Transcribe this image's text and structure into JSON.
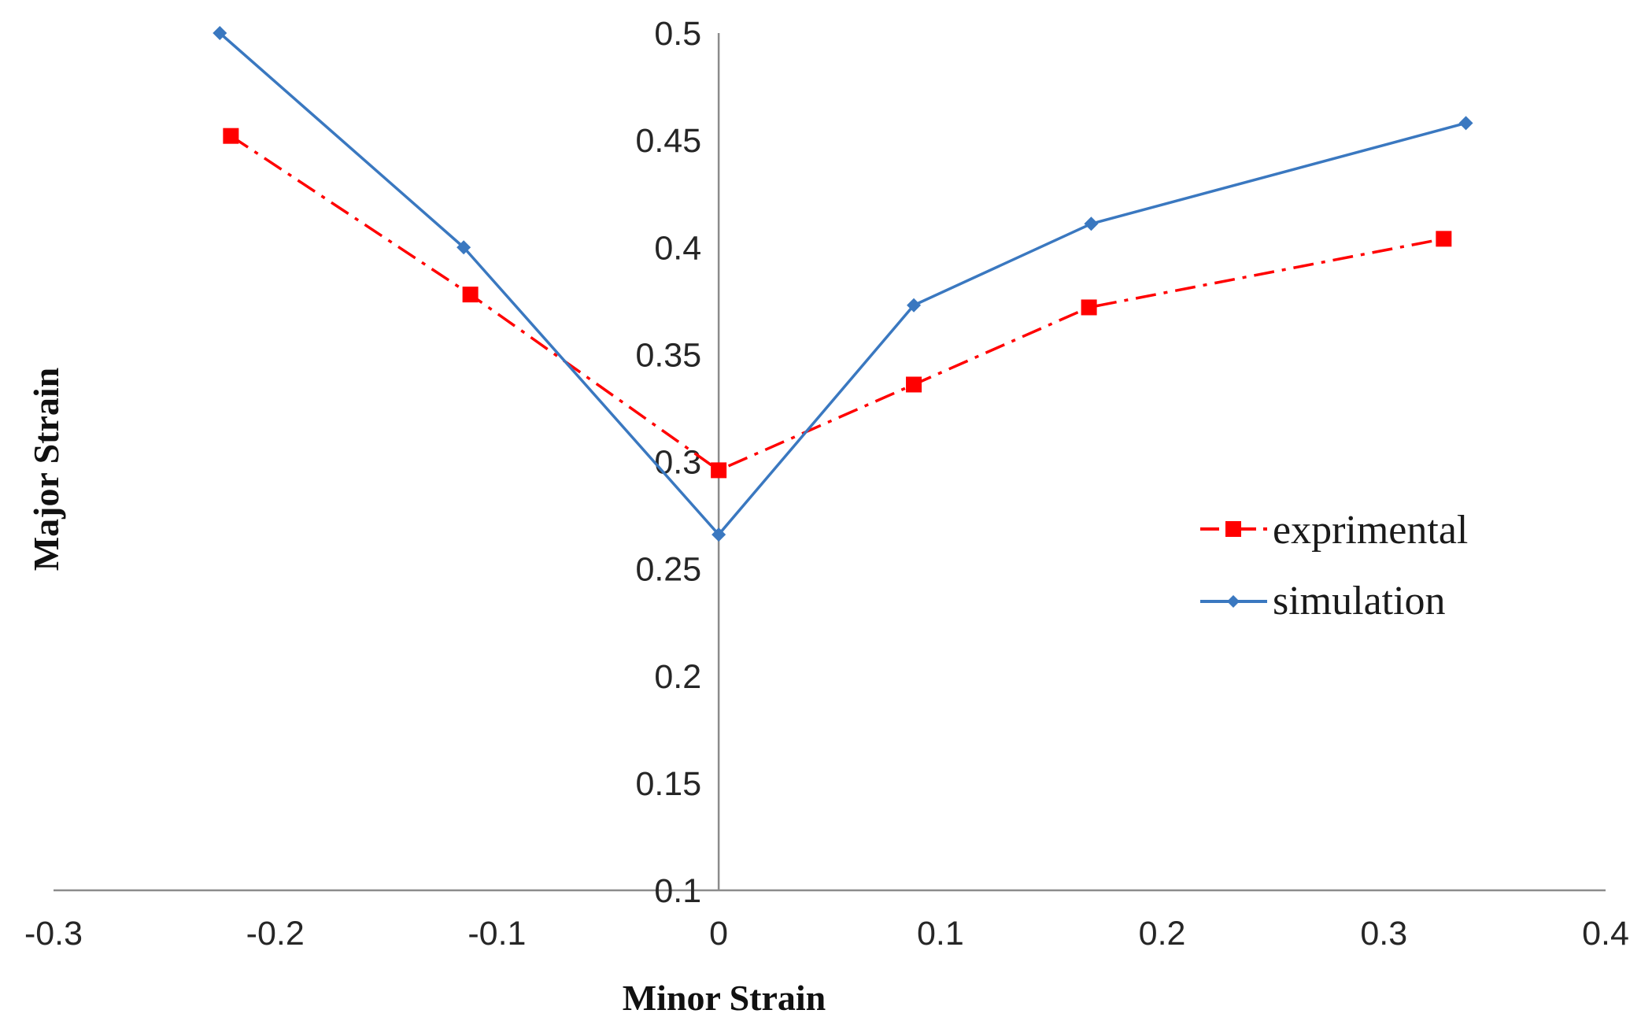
{
  "chart_data": {
    "type": "line",
    "title": "",
    "xlabel": "Minor Strain",
    "ylabel": "Major Strain",
    "xlim": [
      -0.3,
      0.4
    ],
    "ylim": [
      0.1,
      0.5
    ],
    "grid": false,
    "legend_position": "right",
    "x_ticks": [
      {
        "value": -0.3,
        "label": "-0.3"
      },
      {
        "value": -0.2,
        "label": "-0.2"
      },
      {
        "value": -0.1,
        "label": "-0.1"
      },
      {
        "value": 0,
        "label": "0"
      },
      {
        "value": 0.1,
        "label": "0.1"
      },
      {
        "value": 0.2,
        "label": "0.2"
      },
      {
        "value": 0.3,
        "label": "0.3"
      },
      {
        "value": 0.4,
        "label": "0.4"
      }
    ],
    "y_ticks": [
      {
        "value": 0.1,
        "label": "0.1"
      },
      {
        "value": 0.15,
        "label": "0.15"
      },
      {
        "value": 0.2,
        "label": "0.2"
      },
      {
        "value": 0.25,
        "label": "0.25"
      },
      {
        "value": 0.3,
        "label": "0.3"
      },
      {
        "value": 0.35,
        "label": "0.35"
      },
      {
        "value": 0.4,
        "label": "0.4"
      },
      {
        "value": 0.45,
        "label": "0.45"
      },
      {
        "value": 0.5,
        "label": "0.5"
      }
    ],
    "series": [
      {
        "name": "exprimental",
        "color": "#ff0000",
        "line_style": "dash-dot",
        "marker": "square",
        "x": [
          -0.22,
          -0.112,
          0,
          0.088,
          0.167,
          0.327
        ],
        "y": [
          0.452,
          0.378,
          0.296,
          0.336,
          0.372,
          0.404
        ]
      },
      {
        "name": "simulation",
        "color": "#3a78c0",
        "line_style": "solid",
        "marker": "diamond",
        "x": [
          -0.225,
          -0.115,
          0,
          0.088,
          0.168,
          0.337
        ],
        "y": [
          0.5,
          0.4,
          0.266,
          0.373,
          0.411,
          0.458
        ]
      }
    ]
  }
}
